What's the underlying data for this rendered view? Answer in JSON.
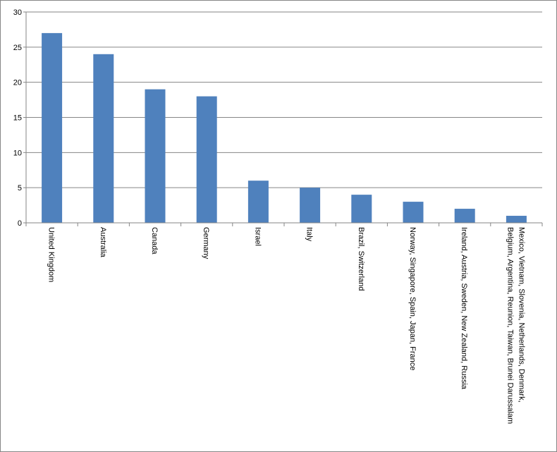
{
  "chart_data": {
    "type": "bar",
    "categories": [
      "United Kingdom",
      "Australia",
      "Canada",
      "Germany",
      "Israel",
      "Italy",
      "Brazil, Switzerland",
      "Norway, Singapore, Spain, Japan, France",
      "Ireland, Austria, Sweden, New Zealand, Russia",
      [
        "Mexico, Vietnam, Slovenia, Netherlands, Denmark,",
        "Belgium, Argentina, Reunion, Taiwan, Brunei Darussalam"
      ]
    ],
    "values": [
      27,
      24,
      19,
      18,
      6,
      5,
      4,
      3,
      2,
      1
    ],
    "color": "#4f81bd",
    "ylim": [
      0,
      30
    ],
    "yticks": [
      0,
      5,
      10,
      15,
      20,
      25,
      30
    ],
    "grid": true
  }
}
